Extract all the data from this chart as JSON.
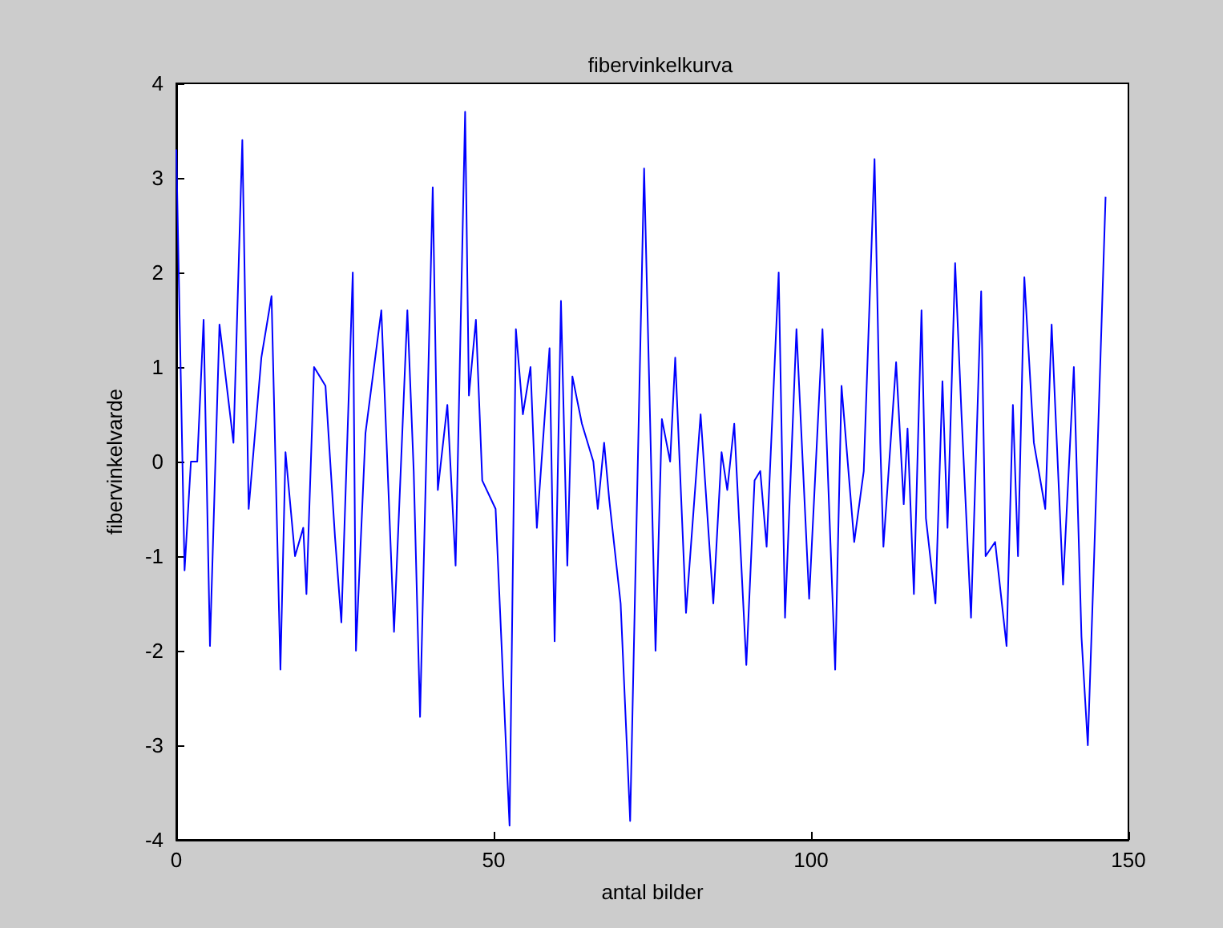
{
  "chart_data": {
    "type": "line",
    "title": "fibervinkelkurva",
    "xlabel": "antal bilder",
    "ylabel": "fibervinkelvarde",
    "xlim": [
      0,
      150
    ],
    "xticks": [
      0,
      50,
      100,
      150
    ],
    "ylim": [
      -4,
      4
    ],
    "yticks": [
      -4,
      -3,
      -2,
      -1,
      0,
      1,
      2,
      3,
      4
    ],
    "grid": false,
    "marker": "none",
    "line_style": "solid",
    "series": [
      {
        "color": "#0000ff",
        "x": [
          0,
          1.3,
          2.3,
          3.3,
          4.3,
          5.3,
          6.8,
          9,
          10.4,
          11.4,
          13.4,
          15,
          16.4,
          17.2,
          18.7,
          20,
          20.5,
          21.7,
          23.5,
          25,
          26,
          27.8,
          28.3,
          29.8,
          32.3,
          34.3,
          36.4,
          37.4,
          38.4,
          40.4,
          41.2,
          42.7,
          44,
          45.5,
          46.1,
          47.2,
          48.2,
          50.3,
          52,
          52.5,
          53.5,
          54.6,
          55.8,
          56.8,
          58.8,
          59.6,
          60.6,
          61.6,
          62.4,
          63.9,
          65.7,
          66.4,
          67.4,
          68.2,
          70,
          71.5,
          73.7,
          75.5,
          76.5,
          77.8,
          78.6,
          80.3,
          82.6,
          84.6,
          85.9,
          86.8,
          87.9,
          89.8,
          91.1,
          92,
          93,
          94.9,
          95.9,
          97.7,
          99.7,
          101.8,
          103.8,
          104.8,
          106.8,
          108.3,
          110,
          110.9,
          111.4,
          113.4,
          114.6,
          115.2,
          116.2,
          117.4,
          118.1,
          119.6,
          120.7,
          121.5,
          122.7,
          123.7,
          125.2,
          126.8,
          127.5,
          129,
          130.8,
          131.8,
          132.6,
          133.6,
          135.1,
          136.9,
          137.9,
          139.7,
          141.4,
          142.6,
          143.6,
          144.6,
          146.4
        ],
        "values": [
          3.3,
          -1.15,
          0,
          0,
          1.5,
          -1.95,
          1.45,
          0.2,
          3.4,
          -0.5,
          1.1,
          1.75,
          -2.2,
          0.1,
          -1.0,
          -0.7,
          -1.4,
          1.0,
          0.8,
          -0.8,
          -1.7,
          2.0,
          -2.0,
          0.3,
          1.6,
          -1.8,
          1.6,
          -0.1,
          -2.7,
          2.9,
          -0.3,
          0.6,
          -1.1,
          3.7,
          0.7,
          1.5,
          -0.2,
          -0.5,
          -3.1,
          -3.85,
          1.4,
          0.5,
          1.0,
          -0.7,
          1.2,
          -1.9,
          1.7,
          -1.1,
          0.9,
          0.4,
          0,
          -0.5,
          0.2,
          -0.4,
          -1.5,
          -3.8,
          3.1,
          -2.0,
          0.45,
          0,
          1.1,
          -1.6,
          0.5,
          -1.5,
          0.1,
          -0.3,
          0.4,
          -2.15,
          -0.2,
          -0.1,
          -0.9,
          2.0,
          -1.65,
          1.4,
          -1.45,
          1.4,
          -2.2,
          0.8,
          -0.85,
          -0.1,
          3.2,
          0.2,
          -0.9,
          1.05,
          -0.45,
          0.35,
          -1.4,
          1.6,
          -0.6,
          -1.5,
          0.85,
          -0.7,
          2.1,
          0.5,
          -1.65,
          1.8,
          -1.0,
          -0.85,
          -1.95,
          0.6,
          -1.0,
          1.95,
          0.2,
          -0.5,
          1.45,
          -1.3,
          1.0,
          -1.85,
          -3.0,
          -1.0,
          2.8
        ]
      }
    ]
  }
}
